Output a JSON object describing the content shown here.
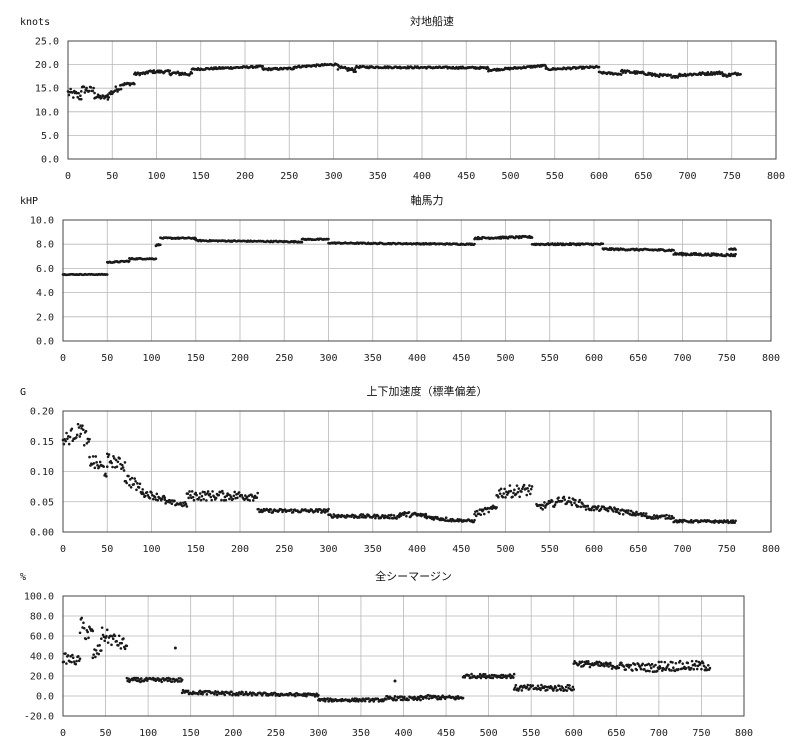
{
  "charts": [
    {
      "type": "scatter",
      "title": "対地船速",
      "ylabel": "knots",
      "xlim": [
        0,
        800
      ],
      "ylim": [
        0,
        25
      ],
      "xticks": [
        "0",
        "50",
        "100",
        "150",
        "200",
        "250",
        "300",
        "350",
        "400",
        "450",
        "500",
        "550",
        "600",
        "650",
        "700",
        "750",
        "800"
      ],
      "yticks": [
        "0.0",
        "5.0",
        "10.0",
        "15.0",
        "20.0",
        "25.0"
      ],
      "segments": [
        [
          0,
          14.0,
          15,
          13.2,
          1.0
        ],
        [
          15,
          14.8,
          30,
          14.5,
          0.8
        ],
        [
          30,
          13.2,
          45,
          13.0,
          0.5
        ],
        [
          45,
          13.5,
          60,
          15.5,
          0.7
        ],
        [
          60,
          15.8,
          75,
          16.0,
          0.3
        ],
        [
          75,
          18.0,
          90,
          18.2,
          0.3
        ],
        [
          90,
          18.5,
          115,
          18.5,
          0.3
        ],
        [
          115,
          18.2,
          140,
          18.0,
          0.4
        ],
        [
          140,
          19.0,
          220,
          19.6,
          0.2
        ],
        [
          220,
          19.0,
          255,
          19.2,
          0.2
        ],
        [
          255,
          19.5,
          305,
          20.1,
          0.2
        ],
        [
          305,
          19.3,
          325,
          18.8,
          0.4
        ],
        [
          325,
          19.5,
          475,
          19.3,
          0.2
        ],
        [
          475,
          18.8,
          540,
          19.8,
          0.2
        ],
        [
          540,
          19.0,
          600,
          19.5,
          0.2
        ],
        [
          600,
          18.3,
          625,
          18.0,
          0.2
        ],
        [
          625,
          18.6,
          660,
          18.0,
          0.3
        ],
        [
          660,
          17.8,
          690,
          17.5,
          0.3
        ],
        [
          690,
          17.8,
          740,
          18.3,
          0.3
        ],
        [
          740,
          17.6,
          760,
          18.2,
          0.3
        ]
      ]
    },
    {
      "type": "scatter",
      "title": "軸馬力",
      "ylabel": "kHP",
      "xlim": [
        0,
        800
      ],
      "ylim": [
        0,
        10
      ],
      "xticks": [
        "0",
        "50",
        "100",
        "150",
        "200",
        "250",
        "300",
        "350",
        "400",
        "450",
        "500",
        "550",
        "600",
        "650",
        "700",
        "750",
        "800"
      ],
      "yticks": [
        "0.0",
        "2.0",
        "4.0",
        "6.0",
        "8.0",
        "10.0"
      ],
      "segments": [
        [
          0,
          5.5,
          50,
          5.5,
          0.03
        ],
        [
          50,
          6.5,
          75,
          6.6,
          0.05
        ],
        [
          75,
          6.8,
          105,
          6.8,
          0.05
        ],
        [
          105,
          7.9,
          110,
          8.0,
          0.05
        ],
        [
          110,
          8.5,
          150,
          8.5,
          0.05
        ],
        [
          150,
          8.3,
          270,
          8.2,
          0.05
        ],
        [
          270,
          8.4,
          300,
          8.4,
          0.05
        ],
        [
          300,
          8.1,
          465,
          8.0,
          0.05
        ],
        [
          465,
          8.5,
          530,
          8.6,
          0.08
        ],
        [
          530,
          8.0,
          610,
          8.0,
          0.07
        ],
        [
          610,
          7.6,
          690,
          7.5,
          0.07
        ],
        [
          690,
          7.2,
          760,
          7.1,
          0.1
        ],
        [
          753,
          7.6,
          760,
          7.6,
          0.05
        ]
      ]
    },
    {
      "type": "scatter",
      "title": "上下加速度（標準偏差）",
      "ylabel": "G",
      "xlim": [
        0,
        800
      ],
      "ylim": [
        0,
        0.2
      ],
      "xticks": [
        "0",
        "50",
        "100",
        "150",
        "200",
        "250",
        "300",
        "350",
        "400",
        "450",
        "500",
        "550",
        "600",
        "650",
        "700",
        "750",
        "800"
      ],
      "yticks": [
        "0.00",
        "0.05",
        "0.10",
        "0.15",
        "0.20"
      ],
      "segments": [
        [
          0,
          0.15,
          20,
          0.17,
          0.012
        ],
        [
          20,
          0.17,
          30,
          0.14,
          0.015
        ],
        [
          30,
          0.12,
          50,
          0.1,
          0.012
        ],
        [
          50,
          0.12,
          70,
          0.11,
          0.01
        ],
        [
          70,
          0.09,
          90,
          0.07,
          0.01
        ],
        [
          90,
          0.065,
          115,
          0.055,
          0.006
        ],
        [
          115,
          0.05,
          140,
          0.045,
          0.004
        ],
        [
          140,
          0.06,
          220,
          0.06,
          0.008
        ],
        [
          220,
          0.035,
          300,
          0.035,
          0.003
        ],
        [
          300,
          0.027,
          380,
          0.025,
          0.003
        ],
        [
          380,
          0.03,
          410,
          0.027,
          0.004
        ],
        [
          410,
          0.025,
          440,
          0.02,
          0.003
        ],
        [
          440,
          0.02,
          465,
          0.018,
          0.002
        ],
        [
          465,
          0.03,
          490,
          0.04,
          0.005
        ],
        [
          490,
          0.065,
          530,
          0.07,
          0.01
        ],
        [
          535,
          0.04,
          560,
          0.05,
          0.006
        ],
        [
          560,
          0.055,
          590,
          0.045,
          0.006
        ],
        [
          590,
          0.04,
          625,
          0.037,
          0.004
        ],
        [
          625,
          0.035,
          660,
          0.027,
          0.004
        ],
        [
          660,
          0.025,
          690,
          0.025,
          0.003
        ],
        [
          690,
          0.018,
          760,
          0.017,
          0.002
        ]
      ]
    },
    {
      "type": "scatter",
      "title": "全シーマージン",
      "ylabel": "%",
      "xlim": [
        0,
        800
      ],
      "ylim": [
        -20,
        100
      ],
      "xticks": [
        "0",
        "50",
        "100",
        "150",
        "200",
        "250",
        "300",
        "350",
        "400",
        "450",
        "500",
        "550",
        "600",
        "650",
        "700",
        "750",
        "800"
      ],
      "yticks": [
        "-20.0",
        "0.0",
        "20.0",
        "40.0",
        "60.0",
        "80.0",
        "100.0"
      ],
      "segments": [
        [
          0,
          38,
          20,
          35,
          5
        ],
        [
          20,
          70,
          35,
          60,
          10
        ],
        [
          35,
          40,
          45,
          48,
          6
        ],
        [
          45,
          62,
          75,
          50,
          7
        ],
        [
          75,
          16,
          140,
          16,
          2
        ],
        [
          140,
          4,
          220,
          2,
          2
        ],
        [
          220,
          2,
          300,
          1,
          1.5
        ],
        [
          300,
          -4,
          380,
          -4,
          1.5
        ],
        [
          380,
          -2,
          420,
          -3,
          2
        ],
        [
          420,
          -1,
          470,
          -2,
          2
        ],
        [
          470,
          20,
          530,
          20,
          2
        ],
        [
          530,
          8,
          600,
          8,
          3
        ],
        [
          600,
          33,
          650,
          30,
          3
        ],
        [
          650,
          30,
          700,
          28,
          4
        ],
        [
          700,
          30,
          760,
          30,
          5
        ]
      ],
      "outliers": [
        [
          132,
          48
        ],
        [
          390,
          15
        ]
      ]
    }
  ]
}
